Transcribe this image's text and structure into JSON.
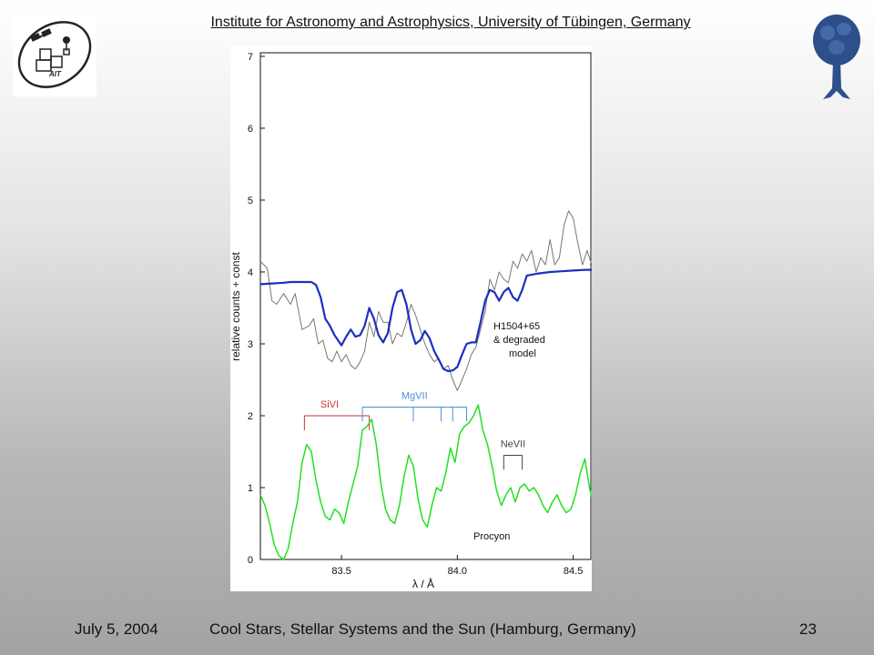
{
  "header": {
    "title": "Institute for Astronomy and Astrophysics, University of Tübingen, Germany"
  },
  "logo_left": {
    "text": "AIT",
    "icon": "ait-satellite-logo"
  },
  "logo_right": {
    "icon": "tuebingen-tree-logo"
  },
  "footer": {
    "date": "July 5, 2004",
    "conference": "Cool Stars, Stellar Systems and the Sun (Hamburg, Germany)",
    "page": "23"
  },
  "colors": {
    "model": "#1c2fc0",
    "observed": "#777777",
    "procyon": "#22e022",
    "sivi": "#cc3333",
    "mgvii": "#4a90d9",
    "nevii": "#444444"
  },
  "chart_data": {
    "type": "line",
    "xlabel": "λ / Å",
    "ylabel": "relative counts + const",
    "xlim": [
      83.15,
      84.58
    ],
    "ylim": [
      0,
      7.05
    ],
    "xticks": [
      83.5,
      84.0,
      84.5
    ],
    "xtick_labels": [
      "83.5",
      "84.0",
      "84.5"
    ],
    "yticks": [
      0,
      1,
      2,
      3,
      4,
      5,
      6,
      7
    ],
    "ytick_labels": [
      "0",
      "1",
      "2",
      "3",
      "4",
      "5",
      "6",
      "7"
    ],
    "grid": false,
    "labels": {
      "h1504": [
        "H1504+65",
        "& degraded",
        "model"
      ],
      "procyon": "Procyon"
    },
    "series": [
      {
        "key": "observed",
        "x": [
          83.15,
          83.18,
          83.2,
          83.22,
          83.25,
          83.28,
          83.3,
          83.33,
          83.36,
          83.38,
          83.4,
          83.42,
          83.44,
          83.46,
          83.48,
          83.5,
          83.52,
          83.54,
          83.56,
          83.58,
          83.6,
          83.62,
          83.64,
          83.66,
          83.68,
          83.7,
          83.72,
          83.74,
          83.76,
          83.78,
          83.8,
          83.82,
          83.84,
          83.86,
          83.88,
          83.9,
          83.92,
          83.94,
          83.96,
          83.98,
          84.0,
          84.02,
          84.04,
          84.06,
          84.08,
          84.1,
          84.12,
          84.14,
          84.16,
          84.18,
          84.2,
          84.22,
          84.24,
          84.26,
          84.28,
          84.3,
          84.32,
          84.34,
          84.36,
          84.38,
          84.4,
          84.42,
          84.44,
          84.46,
          84.48,
          84.5,
          84.52,
          84.54,
          84.56,
          84.58
        ],
        "y": [
          4.15,
          4.05,
          3.6,
          3.55,
          3.7,
          3.55,
          3.7,
          3.2,
          3.25,
          3.35,
          3.0,
          3.05,
          2.8,
          2.75,
          2.9,
          2.75,
          2.85,
          2.7,
          2.65,
          2.75,
          2.9,
          3.3,
          3.1,
          3.45,
          3.3,
          3.3,
          3.0,
          3.15,
          3.1,
          3.3,
          3.55,
          3.4,
          3.2,
          3.0,
          2.85,
          2.75,
          2.8,
          2.65,
          2.7,
          2.5,
          2.35,
          2.5,
          2.65,
          2.85,
          2.95,
          3.2,
          3.45,
          3.9,
          3.75,
          4.0,
          3.9,
          3.85,
          4.15,
          4.05,
          4.25,
          4.15,
          4.3,
          4.0,
          4.2,
          4.1,
          4.45,
          4.1,
          4.2,
          4.65,
          4.85,
          4.75,
          4.4,
          4.1,
          4.3,
          4.1
        ]
      },
      {
        "key": "model",
        "x": [
          83.15,
          83.2,
          83.25,
          83.28,
          83.3,
          83.33,
          83.35,
          83.37,
          83.39,
          83.41,
          83.43,
          83.45,
          83.47,
          83.5,
          83.52,
          83.54,
          83.56,
          83.58,
          83.6,
          83.62,
          83.64,
          83.66,
          83.68,
          83.7,
          83.72,
          83.74,
          83.76,
          83.78,
          83.8,
          83.82,
          83.84,
          83.86,
          83.88,
          83.9,
          83.92,
          83.94,
          83.96,
          83.98,
          84.0,
          84.02,
          84.04,
          84.06,
          84.08,
          84.1,
          84.12,
          84.14,
          84.16,
          84.18,
          84.2,
          84.22,
          84.24,
          84.26,
          84.28,
          84.3,
          84.35,
          84.4,
          84.45,
          84.5,
          84.55,
          84.58
        ],
        "y": [
          3.83,
          3.84,
          3.85,
          3.86,
          3.86,
          3.86,
          3.86,
          3.86,
          3.82,
          3.65,
          3.35,
          3.25,
          3.12,
          2.98,
          3.1,
          3.2,
          3.1,
          3.12,
          3.25,
          3.5,
          3.35,
          3.12,
          3.02,
          3.15,
          3.5,
          3.72,
          3.75,
          3.55,
          3.2,
          3.0,
          3.05,
          3.18,
          3.08,
          2.9,
          2.78,
          2.65,
          2.62,
          2.63,
          2.68,
          2.85,
          3.0,
          3.02,
          3.02,
          3.3,
          3.6,
          3.75,
          3.72,
          3.6,
          3.72,
          3.78,
          3.65,
          3.6,
          3.75,
          3.95,
          3.98,
          4.0,
          4.01,
          4.02,
          4.03,
          4.03
        ]
      },
      {
        "key": "procyon",
        "x": [
          83.15,
          83.17,
          83.19,
          83.21,
          83.23,
          83.25,
          83.27,
          83.29,
          83.31,
          83.33,
          83.35,
          83.37,
          83.39,
          83.41,
          83.43,
          83.45,
          83.47,
          83.49,
          83.51,
          83.53,
          83.55,
          83.57,
          83.59,
          83.61,
          83.63,
          83.65,
          83.67,
          83.69,
          83.71,
          83.73,
          83.75,
          83.77,
          83.79,
          83.81,
          83.83,
          83.85,
          83.87,
          83.89,
          83.91,
          83.93,
          83.95,
          83.97,
          83.99,
          84.01,
          84.03,
          84.05,
          84.07,
          84.09,
          84.11,
          84.13,
          84.15,
          84.17,
          84.19,
          84.21,
          84.23,
          84.25,
          84.27,
          84.29,
          84.31,
          84.33,
          84.35,
          84.37,
          84.39,
          84.41,
          84.43,
          84.45,
          84.47,
          84.49,
          84.51,
          84.53,
          84.55,
          84.57,
          84.58
        ],
        "y": [
          0.9,
          0.75,
          0.5,
          0.2,
          0.05,
          0.0,
          0.15,
          0.5,
          0.8,
          1.35,
          1.6,
          1.5,
          1.1,
          0.8,
          0.6,
          0.55,
          0.7,
          0.65,
          0.5,
          0.8,
          1.05,
          1.3,
          1.8,
          1.85,
          1.95,
          1.6,
          1.05,
          0.7,
          0.55,
          0.5,
          0.75,
          1.15,
          1.45,
          1.3,
          0.85,
          0.55,
          0.45,
          0.75,
          1.0,
          0.95,
          1.2,
          1.55,
          1.35,
          1.75,
          1.85,
          1.9,
          2.0,
          2.15,
          1.8,
          1.6,
          1.3,
          0.95,
          0.75,
          0.9,
          1.0,
          0.8,
          1.0,
          1.05,
          0.95,
          1.0,
          0.9,
          0.75,
          0.65,
          0.8,
          0.9,
          0.75,
          0.65,
          0.7,
          0.9,
          1.2,
          1.4,
          1.0,
          0.85
        ]
      }
    ],
    "line_ids": [
      {
        "label": "SiVI",
        "lines": [
          83.34,
          83.62
        ],
        "bar_y": 2.0,
        "tick_bottom": 1.8
      },
      {
        "label": "MgVII",
        "lines": [
          83.59,
          83.81,
          83.93,
          83.98,
          84.04
        ],
        "bar_y": 2.12,
        "tick_bottom": 1.92
      },
      {
        "label": "NeVII",
        "lines": [
          84.2,
          84.28
        ],
        "bar_y": 1.45,
        "tick_bottom": 1.25
      }
    ]
  }
}
